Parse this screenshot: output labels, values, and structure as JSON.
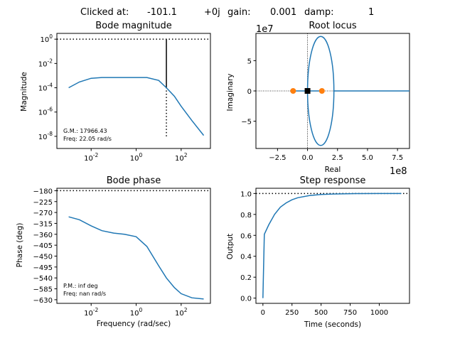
{
  "header": {
    "clicked_label": "Clicked at:",
    "clicked_re": "-101.1",
    "clicked_im": "+0j",
    "gain_label": "gain:",
    "gain_value": "0.001",
    "damp_label": "damp:",
    "damp_value": "1"
  },
  "colors": {
    "curve": "#1f77b4",
    "marker": "#ff7f0e",
    "axis": "#000000"
  },
  "chart_data": [
    {
      "id": "bode_magnitude",
      "type": "line",
      "title": "Bode magnitude",
      "xlabel": "",
      "ylabel": "Magnitude",
      "xscale": "log",
      "yscale": "log",
      "xlim": [
        0.0003,
        2000
      ],
      "ylim": [
        1e-09,
        3
      ],
      "xticks": [
        "10^-2",
        "10^0",
        "10^2"
      ],
      "yticks": [
        "10^0",
        "10^-2",
        "10^-4",
        "10^-6",
        "10^-8"
      ],
      "x": [
        0.001,
        0.003,
        0.01,
        0.03,
        0.1,
        0.3,
        1,
        3,
        10,
        22.05,
        50,
        100,
        300,
        1000
      ],
      "y": [
        0.0001,
        0.0003,
        0.0006,
        0.0007,
        0.0007,
        0.0007,
        0.0007,
        0.0007,
        0.0004,
        0.0001,
        2e-05,
        3e-06,
        2e-07,
        1.2e-08
      ],
      "reference_line": {
        "y": 1,
        "style": "dotted"
      },
      "gain_margin_line": {
        "x": 22.05,
        "y_from": 0.0001,
        "y_to": 1
      },
      "gain_margin_dotted": {
        "x": 22.05,
        "y_from": 1e-08,
        "y_to": 0.0001
      },
      "annotation": [
        "G.M.: 17966.43",
        "Freq: 22.05 rad/s"
      ]
    },
    {
      "id": "root_locus",
      "type": "line",
      "title": "Root locus",
      "xlabel": "Real",
      "ylabel": "Imaginary",
      "x_scale_label": "1e8",
      "y_scale_label": "1e7",
      "xlim": [
        -4.3,
        8.5
      ],
      "ylim": [
        -9.5,
        9.5
      ],
      "xticks": [
        -2.5,
        0.0,
        2.5,
        5.0,
        7.5
      ],
      "yticks": [
        5,
        0,
        -5
      ],
      "locus_ellipse": {
        "cx": 1.1,
        "cy": 0,
        "rx": 1.1,
        "ry": 9.0
      },
      "locus_ray": {
        "from": 2.2,
        "to": 8.5,
        "y": 0
      },
      "poles": [
        [
          -1.2,
          0
        ],
        [
          1.2,
          0
        ]
      ],
      "clicked_point": [
        0,
        0
      ]
    },
    {
      "id": "bode_phase",
      "type": "line",
      "title": "Bode phase",
      "xlabel": "Frequency (rad/sec)",
      "ylabel": "Phase (deg)",
      "xscale": "log",
      "xlim": [
        0.0003,
        2000
      ],
      "ylim": [
        -645,
        -170
      ],
      "xticks": [
        "10^-2",
        "10^0",
        "10^2"
      ],
      "yticks": [
        -180,
        -225,
        -270,
        -315,
        -360,
        -405,
        -450,
        -495,
        -540,
        -585,
        -630
      ],
      "x": [
        0.001,
        0.003,
        0.01,
        0.03,
        0.1,
        0.3,
        1,
        3,
        10,
        22,
        50,
        100,
        300,
        1000
      ],
      "y": [
        -288,
        -300,
        -325,
        -345,
        -355,
        -360,
        -370,
        -410,
        -490,
        -540,
        -580,
        -605,
        -622,
        -627
      ],
      "reference_line": {
        "y": -180,
        "style": "dotted"
      },
      "annotation": [
        "P.M.: inf deg",
        "Freq: nan rad/s"
      ]
    },
    {
      "id": "step_response",
      "type": "line",
      "title": "Step response",
      "xlabel": "Time (seconds)",
      "ylabel": "Output",
      "xlim": [
        -60,
        1260
      ],
      "ylim": [
        -0.05,
        1.05
      ],
      "xticks": [
        0,
        250,
        500,
        750,
        1000
      ],
      "yticks": [
        0.0,
        0.2,
        0.4,
        0.6,
        0.8,
        1.0
      ],
      "x": [
        0,
        12,
        50,
        100,
        150,
        200,
        250,
        300,
        400,
        500,
        600,
        800,
        1000,
        1190
      ],
      "y": [
        0.0,
        0.61,
        0.7,
        0.8,
        0.87,
        0.91,
        0.94,
        0.96,
        0.98,
        0.99,
        0.995,
        0.999,
        1.0,
        1.0
      ],
      "reference_line": {
        "y": 1,
        "style": "dotted"
      }
    }
  ]
}
